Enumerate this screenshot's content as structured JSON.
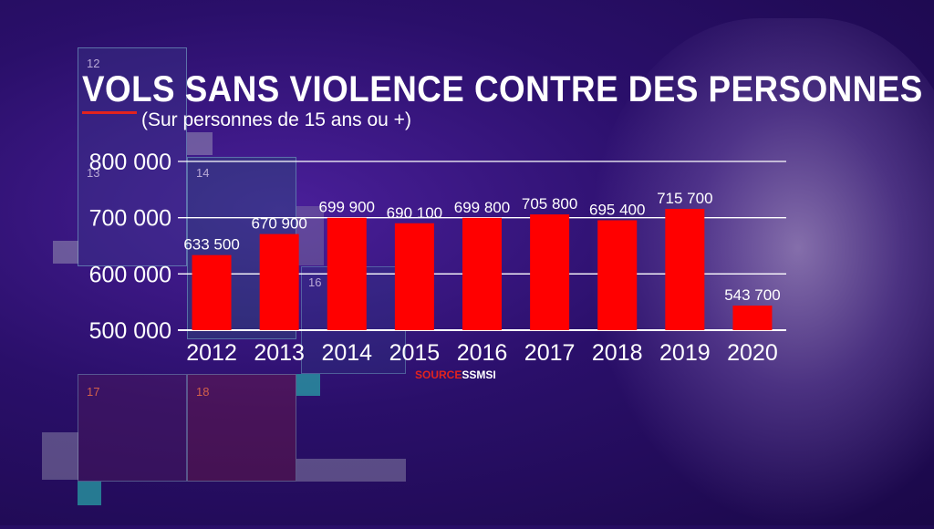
{
  "chart_data": {
    "type": "bar",
    "title": "VOLS SANS VIOLENCE CONTRE DES PERSONNES",
    "subtitle": "(Sur personnes de 15 ans ou +)",
    "categories": [
      "2012",
      "2013",
      "2014",
      "2015",
      "2016",
      "2017",
      "2018",
      "2019",
      "2020"
    ],
    "values": [
      633500,
      670900,
      699900,
      690100,
      699800,
      705800,
      695400,
      715700,
      543700
    ],
    "value_labels": [
      "633 500",
      "670 900",
      "699 900",
      "690 100",
      "699 800",
      "705 800",
      "695 400",
      "715 700",
      "543 700"
    ],
    "yticks": [
      "500 000",
      "600 000",
      "700 000",
      "800 000"
    ],
    "ytick_values": [
      500000,
      600000,
      700000,
      800000
    ],
    "ylim": [
      500000,
      800000
    ],
    "grid": true,
    "bar_color": "#ff0000",
    "xlabel": "",
    "ylabel": ""
  },
  "source": {
    "label": "SOURCE",
    "name": "SSMSI"
  },
  "decor": {
    "numbers": [
      "12",
      "13",
      "14",
      "16",
      "17",
      "18"
    ]
  }
}
